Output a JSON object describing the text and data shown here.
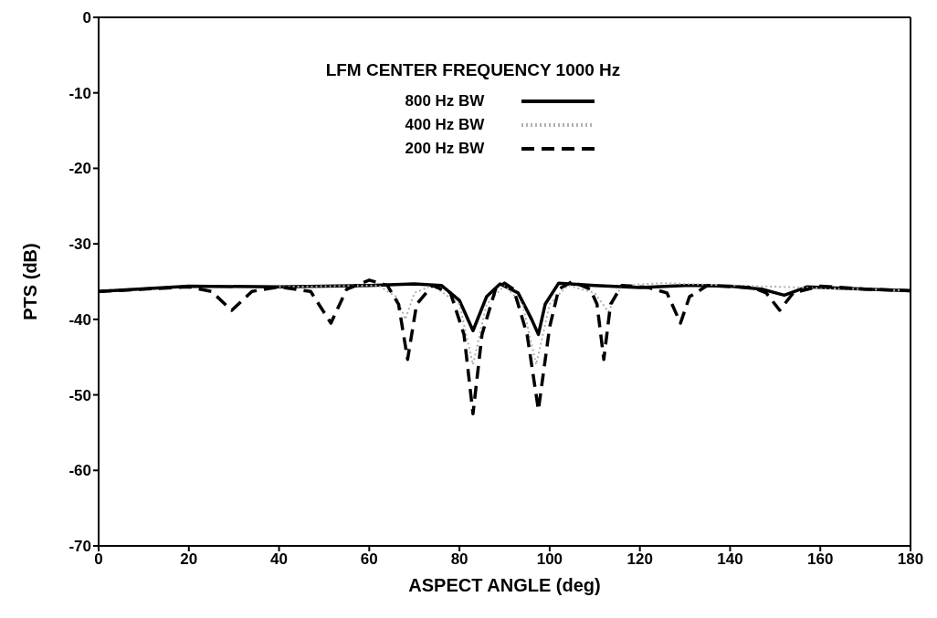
{
  "chart_data": {
    "type": "line",
    "xlabel": "ASPECT ANGLE (deg)",
    "ylabel": "PTS (dB)",
    "legend_title": "LFM CENTER FREQUENCY 1000 Hz",
    "legend": "top",
    "grid": false,
    "marker": "none",
    "xlim": [
      0,
      180
    ],
    "xticks": [
      0,
      20,
      40,
      60,
      80,
      100,
      120,
      140,
      160,
      180
    ],
    "ylim": [
      -70,
      0
    ],
    "yticks": [
      -70,
      -60,
      -50,
      -40,
      -30,
      -20,
      -10,
      0
    ],
    "series": [
      {
        "name": "800 Hz BW",
        "color": "#000000",
        "line_style": "solid",
        "x": [
          0,
          20,
          40,
          60,
          70,
          76,
          80,
          83,
          86,
          89,
          93,
          96,
          97.5,
          99,
          102,
          110,
          120,
          130,
          140,
          147,
          152,
          157,
          170,
          180
        ],
        "values": [
          -36.3,
          -35.6,
          -35.7,
          -35.5,
          -35.3,
          -35.5,
          -37.5,
          -41.5,
          -37,
          -35.3,
          -36.5,
          -40,
          -42,
          -38,
          -35.2,
          -35.5,
          -35.8,
          -35.5,
          -35.6,
          -36,
          -36.8,
          -35.7,
          -36,
          -36.2
        ]
      },
      {
        "name": "400 Hz BW",
        "color": "#b0b0b0",
        "line_style": "dotted",
        "x": [
          40,
          62,
          66,
          68,
          70,
          74,
          80,
          83,
          86,
          90,
          94,
          97,
          100,
          104,
          110,
          113,
          116,
          125,
          140,
          180
        ],
        "values": [
          -35.7,
          -35.5,
          -37,
          -40,
          -36.5,
          -35.5,
          -38,
          -46,
          -38,
          -35.5,
          -38,
          -46,
          -38,
          -35.5,
          -36.5,
          -39,
          -35.5,
          -35.2,
          -35.5,
          -36.2
        ]
      },
      {
        "name": "200 Hz BW",
        "color": "#000000",
        "line_style": "dashed",
        "x": [
          0,
          10,
          20,
          25,
          29.5,
          34,
          40,
          47,
          51.5,
          55,
          60,
          64,
          66.5,
          68.5,
          70.5,
          74,
          78,
          81,
          83,
          85,
          88,
          90,
          92,
          95,
          97.5,
          100,
          102,
          105,
          109,
          110.5,
          112,
          113.5,
          116,
          122,
          126,
          129,
          131,
          135,
          145,
          148,
          151,
          154,
          160,
          170,
          180
        ],
        "values": [
          -36.3,
          -36,
          -35.7,
          -36.3,
          -38.8,
          -36.3,
          -35.7,
          -36.3,
          -40.5,
          -36,
          -34.8,
          -35.5,
          -38,
          -45.3,
          -38,
          -35.5,
          -36.5,
          -42,
          -52.5,
          -42,
          -36,
          -35.2,
          -36,
          -42,
          -52,
          -41,
          -36,
          -35,
          -36,
          -38,
          -45.3,
          -38,
          -35.5,
          -35.8,
          -36.5,
          -40.5,
          -37,
          -35.5,
          -35.8,
          -36.5,
          -38.8,
          -36.5,
          -35.6,
          -36,
          -36.2
        ]
      }
    ]
  }
}
